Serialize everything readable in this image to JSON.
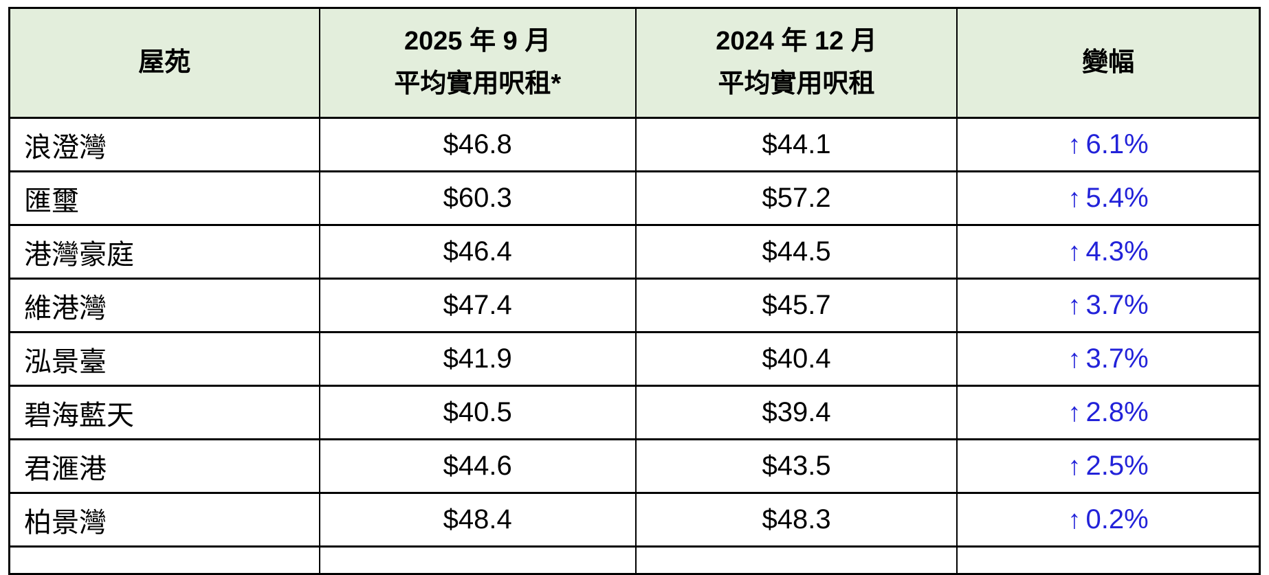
{
  "table": {
    "colors": {
      "header_bg": "#E3EEDC",
      "change_text": "#2222D9",
      "border": "#000000"
    },
    "headers": {
      "estate": "屋苑",
      "col_2025_line1": "2025 年 9 月",
      "col_2025_line2": "平均實用呎租*",
      "col_2024_line1": "2024 年 12 月",
      "col_2024_line2": "平均實用呎租",
      "change": "變幅"
    },
    "rows": [
      {
        "estate": "浪澄灣",
        "rent_2025_09": "$46.8",
        "rent_2024_12": "$44.1",
        "change_arrow": "↑",
        "change_value": "6.1%"
      },
      {
        "estate": "匯璽",
        "rent_2025_09": "$60.3",
        "rent_2024_12": "$57.2",
        "change_arrow": "↑",
        "change_value": "5.4%"
      },
      {
        "estate": "港灣豪庭",
        "rent_2025_09": "$46.4",
        "rent_2024_12": "$44.5",
        "change_arrow": "↑",
        "change_value": "4.3%"
      },
      {
        "estate": "維港灣",
        "rent_2025_09": "$47.4",
        "rent_2024_12": "$45.7",
        "change_arrow": "↑",
        "change_value": "3.7%"
      },
      {
        "estate": "泓景臺",
        "rent_2025_09": "$41.9",
        "rent_2024_12": "$40.4",
        "change_arrow": "↑",
        "change_value": "3.7%"
      },
      {
        "estate": "碧海藍天",
        "rent_2025_09": "$40.5",
        "rent_2024_12": "$39.4",
        "change_arrow": "↑",
        "change_value": "2.8%"
      },
      {
        "estate": "君滙港",
        "rent_2025_09": "$44.6",
        "rent_2024_12": "$43.5",
        "change_arrow": "↑",
        "change_value": "2.5%"
      },
      {
        "estate": "柏景灣",
        "rent_2025_09": "$48.4",
        "rent_2024_12": "$48.3",
        "change_arrow": "↑",
        "change_value": "0.2%"
      }
    ]
  }
}
